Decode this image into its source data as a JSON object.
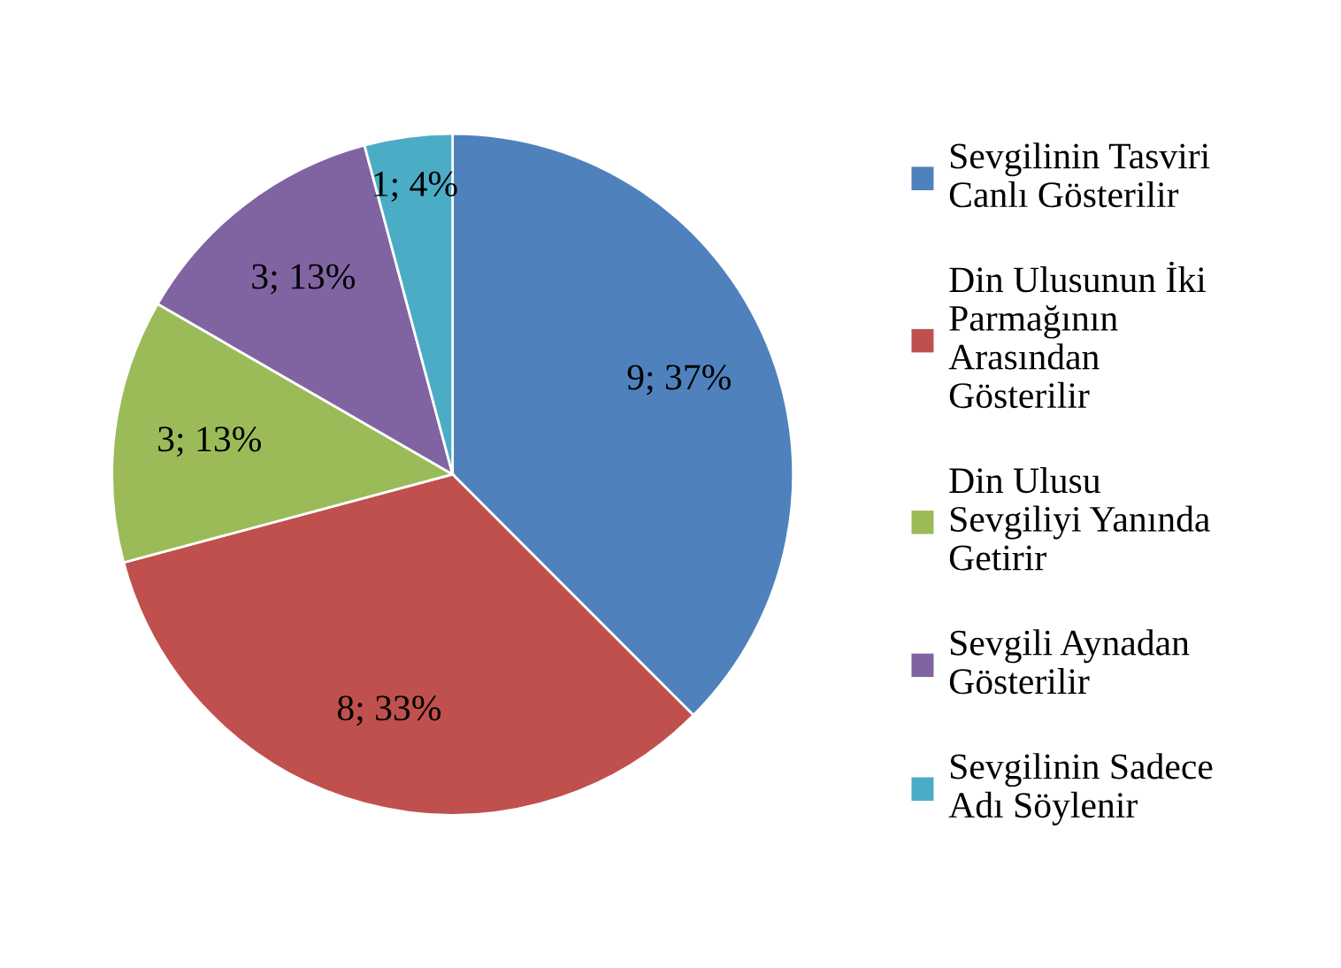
{
  "chart_data": {
    "type": "pie",
    "categories": [
      "Sevgilinin Tasviri Canlı Gösterilir",
      "Din Ulusunun İki Parmağının Arasından Gösterilir",
      "Din Ulusu Sevgiliyi Yanında Getirir",
      "Sevgili Aynadan Gösterilir",
      "Sevgilinin Sadece Adı Söylenir"
    ],
    "values": [
      9,
      8,
      3,
      3,
      1
    ],
    "value_labels": [
      "9; 37%",
      "8; 33%",
      "3; 13%",
      "3; 13%",
      "1; 4%"
    ],
    "colors": [
      "#4f81bd",
      "#c0504d",
      "#9bbb59",
      "#8064a2",
      "#4bacc6"
    ],
    "legend": "right"
  }
}
